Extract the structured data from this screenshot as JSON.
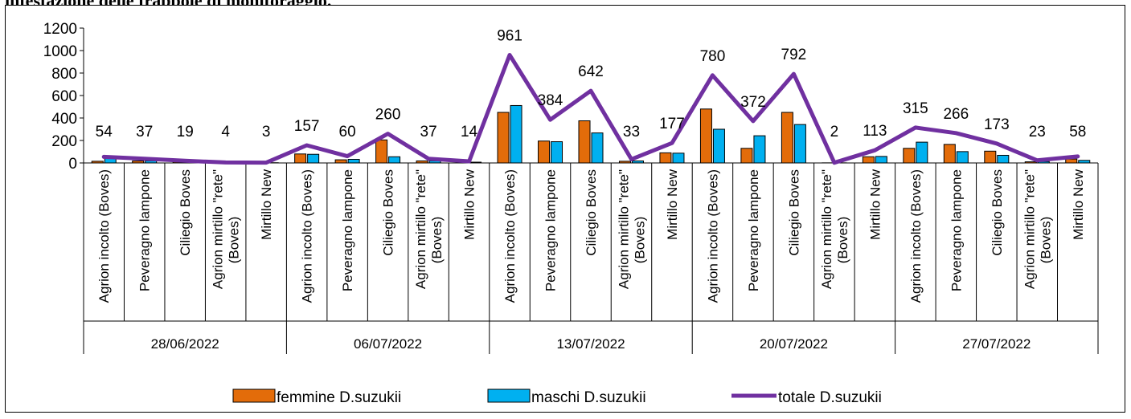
{
  "page_heading_fragment": "infestazione delle trappole di monitoraggio.",
  "chart_data": {
    "type": "bar",
    "categories": [
      "Agrion incolto (Boves)",
      "Peveragno lampone",
      "Ciliegio Boves",
      "Agrion mirtillo \"rete\" (Boves)",
      "Mirtillo New",
      "Agrion incolto (Boves)",
      "Peveragno lampone",
      "Ciliegio Boves",
      "Agrion mirtillo \"rete\" (Boves)",
      "Mirtillo New",
      "Agrion incolto (Boves)",
      "Peveragno lampone",
      "Ciliegio Boves",
      "Agrion mirtillo \"rete\" (Boves)",
      "Mirtillo New",
      "Agrion incolto (Boves)",
      "Peveragno lampone",
      "Ciliegio Boves",
      "Agrion mirtillo \"rete\" (Boves)",
      "Mirtillo New",
      "Agrion incolto (Boves)",
      "Peveragno lampone",
      "Ciliegio Boves",
      "Agrion mirtillo \"rete\" (Boves)",
      "Mirtillo New"
    ],
    "groups": [
      "28/06/2022",
      "06/07/2022",
      "13/07/2022",
      "20/07/2022",
      "27/07/2022"
    ],
    "series": [
      {
        "name": "femmine D.suzukii",
        "type": "bar",
        "color": "#E36C0A",
        "values": [
          15,
          18,
          9,
          2,
          1,
          80,
          28,
          205,
          18,
          7,
          450,
          195,
          375,
          15,
          90,
          480,
          130,
          450,
          1,
          55,
          130,
          165,
          105,
          10,
          35
        ]
      },
      {
        "name": "maschi D.suzukii",
        "type": "bar",
        "color": "#00B0F0",
        "values": [
          39,
          19,
          10,
          2,
          2,
          77,
          32,
          55,
          19,
          7,
          511,
          189,
          267,
          18,
          87,
          300,
          242,
          342,
          1,
          58,
          185,
          101,
          68,
          13,
          23
        ]
      },
      {
        "name": "totale D.suzukii",
        "type": "line",
        "color": "#7030A0",
        "values": [
          54,
          37,
          19,
          4,
          3,
          157,
          60,
          260,
          37,
          14,
          961,
          384,
          642,
          33,
          177,
          780,
          372,
          792,
          2,
          113,
          315,
          266,
          173,
          23,
          58
        ]
      }
    ],
    "data_labels": [
      "54",
      "37",
      "19",
      "4",
      "3",
      "157",
      "60",
      "260",
      "37",
      "14",
      "961",
      "384",
      "642",
      "33",
      "177",
      "780",
      "372",
      "792",
      "2",
      "113",
      "315",
      "266",
      "173",
      "23",
      "58"
    ],
    "y_ticks": [
      "0",
      "200",
      "400",
      "600",
      "800",
      "1000",
      "1200"
    ],
    "ylim": [
      0,
      1200
    ],
    "grid": false,
    "legend_position": "bottom"
  }
}
